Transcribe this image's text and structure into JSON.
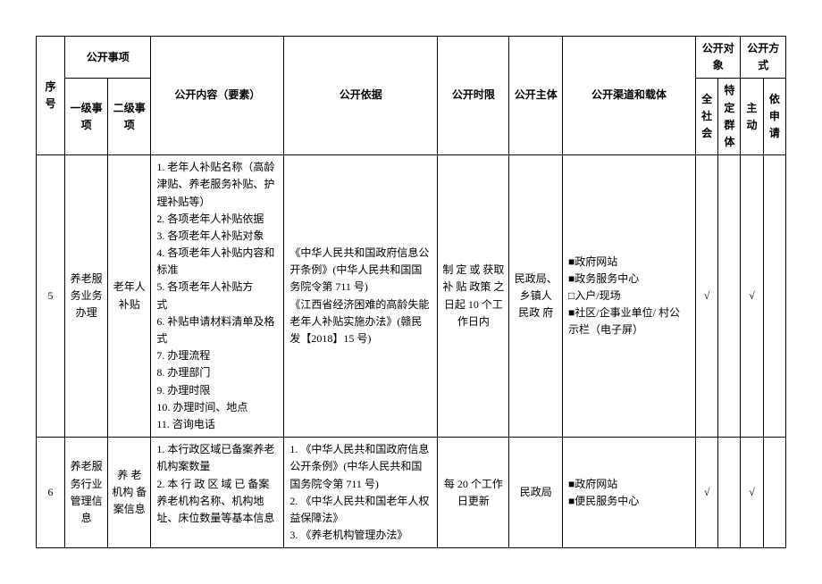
{
  "headers": {
    "seq": "序号",
    "matters": "公开事项",
    "level1": "一级事项",
    "level2": "二级事项",
    "content": "公开内容（要素）",
    "basis": "公开依据",
    "timelimit": "公开时限",
    "subject": "公开主体",
    "channel": "公开渠道和载体",
    "target": "公开对象",
    "all_society": "全社会",
    "specific": "特定群体",
    "method": "公开方式",
    "active": "主动",
    "by_apply": "依申请"
  },
  "rows": [
    {
      "seq": "5",
      "level1": "养老服务业务办理",
      "level2": "老年人补贴",
      "content": "1. 老年人补贴名称（高龄津贴、养老服务补贴、护理补贴等）\n2. 各项老年人补贴依据\n3. 各项老年人补贴对象\n4. 各项老年人补贴内容和标准\n5. 各项老年人补贴方\n式\n6. 补贴申请材料清单及格式\n7. 办理流程\n8. 办理部门\n9. 办理时限\n10. 办理时间、地点\n11. 咨询电话",
      "basis": "《中华人民共和国政府信息公开条例》(中华人民共和国国务院令第 711 号)\n《江西省经济困难的高龄失能老年人补贴实施办法》(赣民发【2018】15 号)",
      "timelimit": "制 定 或 获取 补 贴 政策 之 日起 10 个工\n作日内",
      "subject": "民政局、乡镇人 民政 府",
      "channel": "■政府网站\n■政务服务中心\n□入户/现场\n■社区/企事业单位/ 村公示栏（电子屏）",
      "all_society": "√",
      "specific": "",
      "active": "√",
      "by_apply": ""
    },
    {
      "seq": "6",
      "level1": "养老服务行业管理信息",
      "level2": "养 老 机构 备 案信息",
      "content": "1. 本行政区域已备案养老机构案数量\n2. 本 行 政 区 域 已 备案 养老机构名称、机构地址、床位数量等基本信息",
      "basis": "1. 《中华人民共和国政府信息公开条例》(中华人民共和国国务院令第 711 号)\n2. 《中华人民共和国老年人权益保障法》\n3. 《养老机构管理办法》",
      "timelimit": "每 20 个工作日更新",
      "subject": "民政局",
      "channel": "■政府网站\n■便民服务中心",
      "all_society": "√",
      "specific": "",
      "active": "√",
      "by_apply": ""
    }
  ]
}
